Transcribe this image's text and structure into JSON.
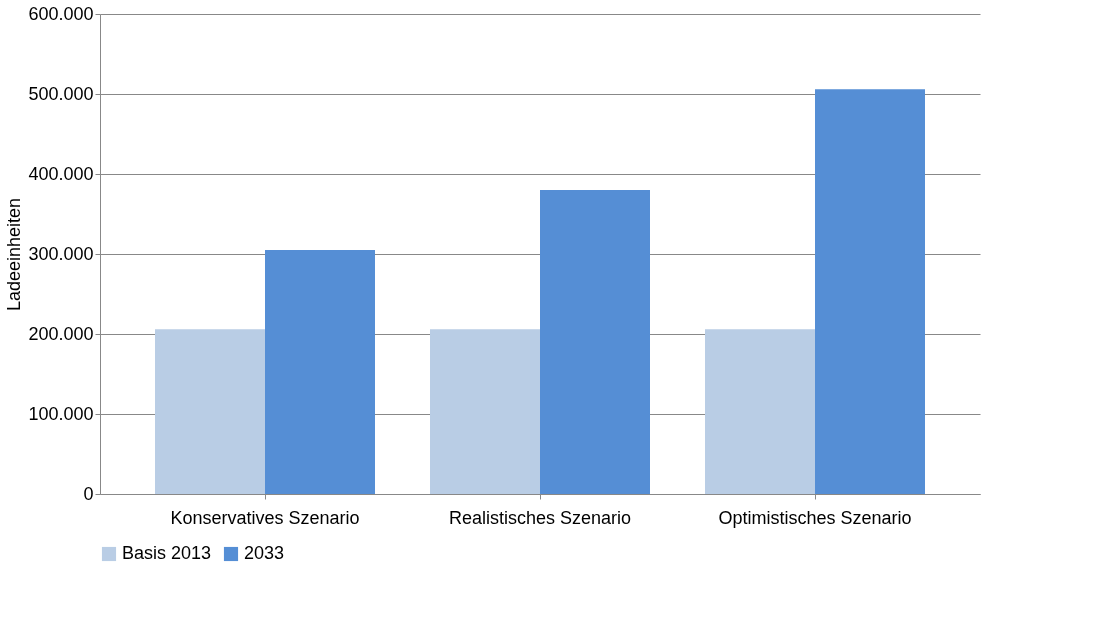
{
  "chart_data": {
    "type": "bar",
    "ylabel": "Ladeeinheiten",
    "categories": [
      "Konservatives Szenario",
      "Realistisches Szenario",
      "Optimistisches Szenario"
    ],
    "series": [
      {
        "name": "Basis 2013",
        "color": "#b9cde5",
        "values": [
          206000,
          206000,
          206000
        ]
      },
      {
        "name": "2033",
        "color": "#558ed5",
        "values": [
          305000,
          380000,
          506000
        ]
      }
    ],
    "ylim": [
      0,
      600000
    ],
    "yticks": [
      {
        "value": 0,
        "label": "0"
      },
      {
        "value": 100000,
        "label": "100.000"
      },
      {
        "value": 200000,
        "label": "200.000"
      },
      {
        "value": 300000,
        "label": "300.000"
      },
      {
        "value": 400000,
        "label": "400.000"
      },
      {
        "value": 500000,
        "label": "500.000"
      },
      {
        "value": 600000,
        "label": "600.000"
      }
    ],
    "grid": "y",
    "legend": "bottom"
  }
}
